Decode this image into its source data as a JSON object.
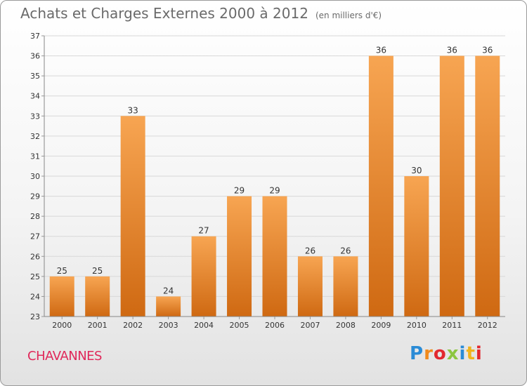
{
  "title": "Achats et Charges Externes 2000 à 2012",
  "subtitle": "(en milliers d'€)",
  "commune": "CHAVANNES",
  "logo": {
    "text": "Proxiti",
    "letters": [
      {
        "ch": "P",
        "color": "#2a8bd6"
      },
      {
        "ch": "r",
        "color": "#f08a1c"
      },
      {
        "ch": "o",
        "color": "#e2282e"
      },
      {
        "ch": "x",
        "color": "#8cc63f"
      },
      {
        "ch": "i",
        "color": "#2a8bd6"
      },
      {
        "ch": "t",
        "color": "#f0b41c"
      },
      {
        "ch": "i",
        "color": "#e2282e"
      }
    ]
  },
  "colors": {
    "bar_top": "#f7a552",
    "bar_bottom": "#cf6912",
    "grid": "#d8d8d8",
    "axis_text": "#333333"
  },
  "chart_data": {
    "type": "bar",
    "categories": [
      "2000",
      "2001",
      "2002",
      "2003",
      "2004",
      "2005",
      "2006",
      "2007",
      "2008",
      "2009",
      "2010",
      "2011",
      "2012"
    ],
    "values": [
      25,
      25,
      33,
      24,
      27,
      29,
      29,
      26,
      26,
      36,
      30,
      36,
      36
    ],
    "ylim": [
      23,
      37
    ],
    "yticks": [
      23,
      24,
      25,
      26,
      27,
      28,
      29,
      30,
      31,
      32,
      33,
      34,
      35,
      36,
      37
    ],
    "grid": true,
    "data_labels": true
  }
}
